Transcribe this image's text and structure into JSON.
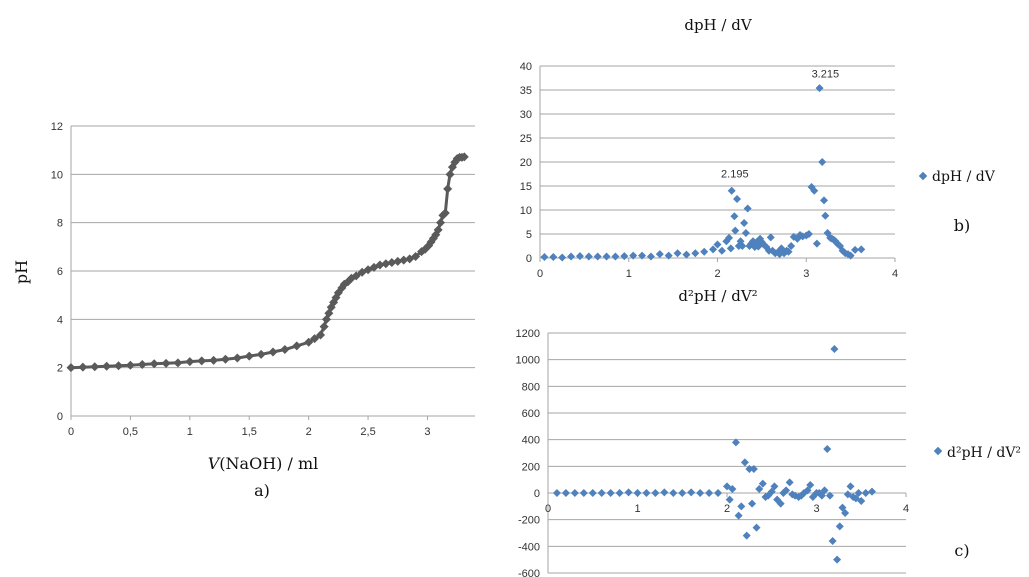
{
  "figure": {
    "panel_a_label": "a)",
    "panel_b_label": "b)",
    "panel_c_label": "c)"
  },
  "colors": {
    "titration_curve": "#5a5a5a",
    "derivative_points": "#4f81bd",
    "gridline": "#a6a6a6",
    "axis": "#a6a6a6"
  },
  "chart_data": [
    {
      "id": "a",
      "type": "line",
      "title": "",
      "xlabel_italic": "V",
      "xlabel_rest": "(NaOH) / ml",
      "ylabel": "pH",
      "xlim": [
        0,
        3.4
      ],
      "ylim": [
        0,
        12
      ],
      "xticks": [
        0,
        0.5,
        1,
        1.5,
        2,
        2.5,
        3
      ],
      "xtick_labels": [
        "0",
        "0,5",
        "1",
        "1,5",
        "2",
        "2,5",
        "3"
      ],
      "yticks": [
        0,
        2,
        4,
        6,
        8,
        10,
        12
      ],
      "ytick_labels": [
        "0",
        "2",
        "4",
        "6",
        "8",
        "10",
        "12"
      ],
      "grid": "horizontal",
      "markers": "diamond",
      "series": [
        {
          "x": [
            0,
            0.1,
            0.2,
            0.3,
            0.4,
            0.5,
            0.6,
            0.7,
            0.8,
            0.9,
            1.0,
            1.1,
            1.2,
            1.3,
            1.4,
            1.5,
            1.6,
            1.7,
            1.8,
            1.9,
            2.0,
            2.05,
            2.1,
            2.13,
            2.15,
            2.17,
            2.19,
            2.21,
            2.23,
            2.25,
            2.28,
            2.3,
            2.33,
            2.36,
            2.4,
            2.45,
            2.5,
            2.55,
            2.6,
            2.65,
            2.7,
            2.75,
            2.8,
            2.85,
            2.9,
            2.95,
            2.98,
            3.01,
            3.03,
            3.05,
            3.07,
            3.09,
            3.11,
            3.13,
            3.15,
            3.17,
            3.19,
            3.21,
            3.23,
            3.25,
            3.27,
            3.29,
            3.31
          ],
          "y": [
            2.0,
            2.02,
            2.04,
            2.06,
            2.08,
            2.1,
            2.13,
            2.16,
            2.18,
            2.2,
            2.25,
            2.28,
            2.3,
            2.35,
            2.4,
            2.48,
            2.55,
            2.65,
            2.75,
            2.9,
            3.05,
            3.2,
            3.35,
            3.7,
            4.0,
            4.25,
            4.5,
            4.7,
            4.9,
            5.1,
            5.3,
            5.45,
            5.55,
            5.7,
            5.8,
            5.95,
            6.05,
            6.15,
            6.25,
            6.3,
            6.35,
            6.4,
            6.45,
            6.5,
            6.6,
            6.8,
            6.9,
            7.05,
            7.2,
            7.35,
            7.5,
            7.7,
            8.0,
            8.3,
            8.4,
            9.4,
            10.0,
            10.3,
            10.5,
            10.65,
            10.7,
            10.7,
            10.72
          ]
        }
      ]
    },
    {
      "id": "b",
      "type": "scatter",
      "title": "dpH / dV",
      "legend": "dpH / dV",
      "legend_position": "right",
      "xlim": [
        0,
        4
      ],
      "ylim": [
        0,
        40
      ],
      "xticks": [
        0,
        1,
        2,
        3,
        4
      ],
      "xtick_labels": [
        "0",
        "1",
        "2",
        "3",
        "4"
      ],
      "yticks": [
        0,
        5,
        10,
        15,
        20,
        25,
        30,
        35,
        40
      ],
      "ytick_labels": [
        "0",
        "5",
        "10",
        "15",
        "20",
        "25",
        "30",
        "35",
        "40"
      ],
      "grid": "horizontal",
      "annotations": [
        {
          "text": "2.195",
          "x": 2.195,
          "y": 16.8
        },
        {
          "text": "3.215",
          "x": 3.215,
          "y": 37.6
        }
      ],
      "series": [
        {
          "x": [
            0.05,
            0.15,
            0.25,
            0.35,
            0.45,
            0.55,
            0.65,
            0.75,
            0.85,
            0.95,
            1.05,
            1.15,
            1.25,
            1.35,
            1.45,
            1.55,
            1.65,
            1.75,
            1.85,
            1.95,
            2.0,
            2.05,
            2.1,
            2.13,
            2.15,
            2.16,
            2.19,
            2.2,
            2.22,
            2.24,
            2.26,
            2.28,
            2.3,
            2.32,
            2.34,
            2.36,
            2.38,
            2.4,
            2.42,
            2.44,
            2.46,
            2.48,
            2.5,
            2.52,
            2.55,
            2.58,
            2.6,
            2.62,
            2.65,
            2.68,
            2.7,
            2.72,
            2.75,
            2.78,
            2.8,
            2.83,
            2.86,
            2.9,
            2.93,
            2.96,
            3.0,
            3.03,
            3.06,
            3.09,
            3.12,
            3.15,
            3.18,
            3.2,
            3.215,
            3.24,
            3.27,
            3.29,
            3.31,
            3.33,
            3.35,
            3.38,
            3.41,
            3.44,
            3.47,
            3.5,
            3.55,
            3.62
          ],
          "y": [
            0.2,
            0.2,
            0.1,
            0.3,
            0.4,
            0.3,
            0.3,
            0.3,
            0.3,
            0.4,
            0.5,
            0.5,
            0.3,
            0.8,
            0.5,
            1.0,
            0.7,
            1.0,
            1.3,
            1.8,
            2.8,
            1.5,
            3.5,
            4.2,
            2.0,
            14.0,
            8.7,
            5.7,
            12.3,
            2.5,
            3.5,
            2.5,
            7.3,
            5.2,
            10.3,
            2.5,
            3.0,
            3.5,
            2.3,
            3.3,
            2.4,
            4.0,
            3.3,
            2.8,
            2.3,
            1.5,
            4.3,
            1.5,
            1.0,
            1.2,
            0.8,
            2.0,
            1.0,
            1.5,
            1.3,
            2.5,
            4.4,
            4.0,
            4.8,
            4.5,
            4.7,
            5.0,
            14.8,
            14.0,
            3.0,
            35.4,
            20.0,
            12.0,
            8.8,
            5.2,
            4.2,
            4.0,
            3.8,
            3.5,
            3.0,
            2.5,
            1.5,
            1.0,
            0.8,
            0.5,
            1.7,
            1.8
          ]
        }
      ]
    },
    {
      "id": "c",
      "type": "scatter",
      "title": "d²pH / dV²",
      "legend": "d²pH / dV²",
      "legend_position": "right",
      "xlim": [
        0,
        4
      ],
      "ylim": [
        -600,
        1200
      ],
      "xticks": [
        0,
        1,
        2,
        3,
        4
      ],
      "xtick_labels": [
        "0",
        "1",
        "2",
        "3",
        "4"
      ],
      "yticks": [
        -600,
        -400,
        -200,
        0,
        200,
        400,
        600,
        800,
        1000,
        1200
      ],
      "ytick_labels": [
        "-600",
        "-400",
        "-200",
        "0",
        "200",
        "400",
        "600",
        "800",
        "1000",
        "1200"
      ],
      "grid": "horizontal",
      "series": [
        {
          "x": [
            0.1,
            0.2,
            0.3,
            0.4,
            0.5,
            0.6,
            0.7,
            0.8,
            0.9,
            1.0,
            1.1,
            1.2,
            1.3,
            1.4,
            1.5,
            1.6,
            1.7,
            1.8,
            1.9,
            2.0,
            2.03,
            2.06,
            2.1,
            2.13,
            2.16,
            2.2,
            2.22,
            2.25,
            2.28,
            2.3,
            2.33,
            2.36,
            2.4,
            2.43,
            2.46,
            2.5,
            2.53,
            2.56,
            2.6,
            2.63,
            2.66,
            2.7,
            2.73,
            2.76,
            2.8,
            2.83,
            2.86,
            2.9,
            2.93,
            2.96,
            3.0,
            3.03,
            3.06,
            3.09,
            3.12,
            3.15,
            3.18,
            3.2,
            3.23,
            3.26,
            3.29,
            3.32,
            3.35,
            3.38,
            3.41,
            3.44,
            3.47,
            3.5,
            3.55,
            3.62
          ],
          "y": [
            0,
            0,
            0,
            0,
            0,
            0,
            0,
            0,
            5,
            0,
            0,
            0,
            5,
            0,
            0,
            5,
            0,
            0,
            0,
            50,
            -50,
            30,
            380,
            -170,
            -100,
            230,
            -320,
            180,
            -80,
            180,
            -260,
            30,
            70,
            -30,
            -20,
            10,
            50,
            -50,
            -80,
            0,
            20,
            80,
            -10,
            -20,
            -30,
            -20,
            0,
            20,
            60,
            -30,
            0,
            0,
            -20,
            20,
            330,
            -20,
            -360,
            1080,
            -500,
            -250,
            -110,
            -150,
            -10,
            50,
            -30,
            -40,
            0,
            -60,
            0,
            10
          ]
        }
      ]
    }
  ]
}
